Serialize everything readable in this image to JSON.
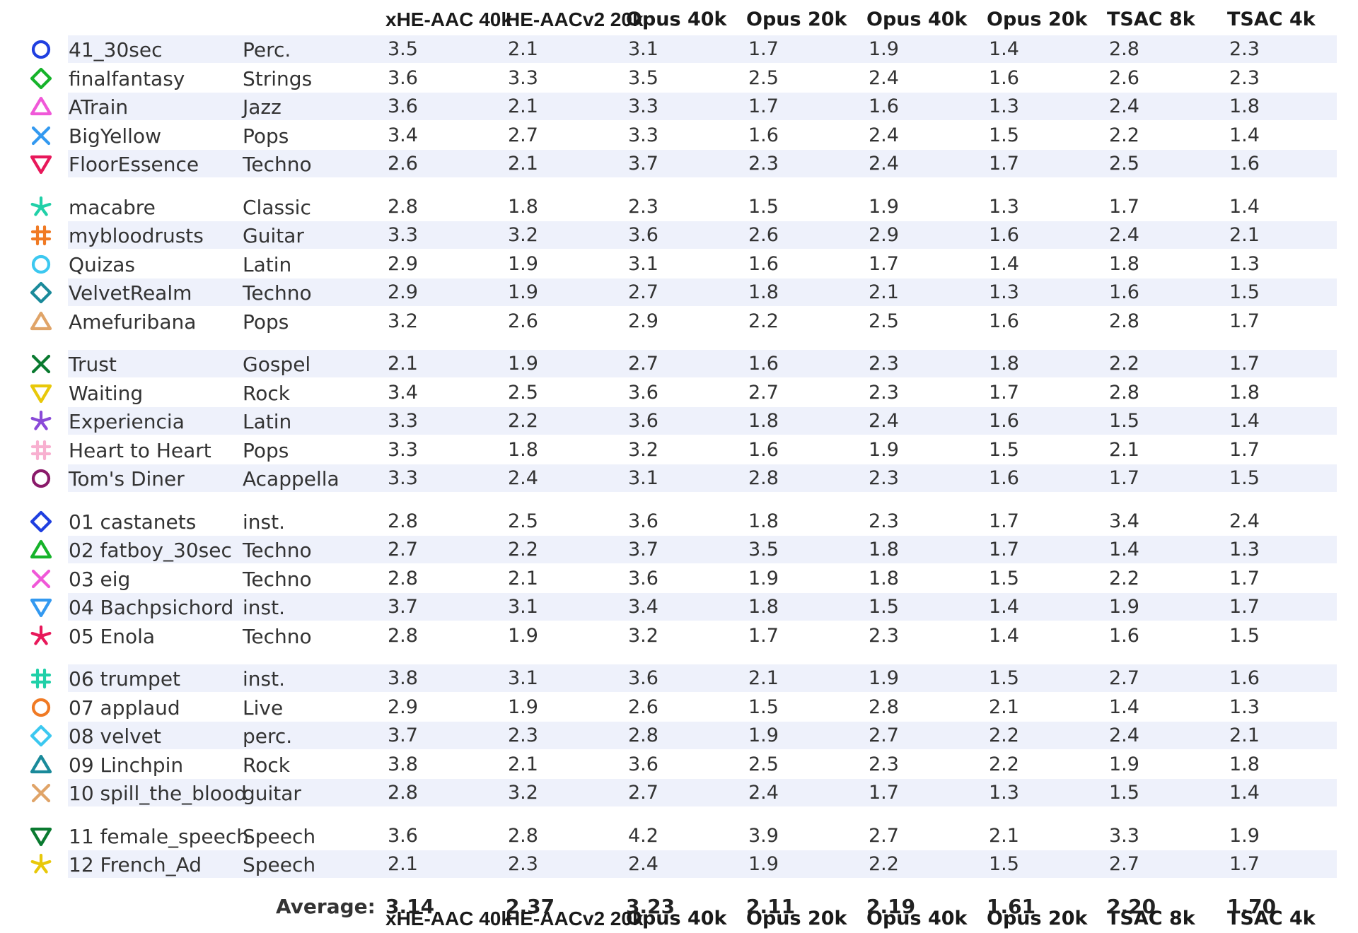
{
  "chart_data": {
    "type": "table",
    "title": "",
    "columns": [
      "xHE-AAC 40k",
      "HE-AACv2 20k",
      "Opus 40k",
      "Opus 20k",
      "Opus 40k",
      "Opus 20k",
      "TSAC 8k",
      "TSAC 4k"
    ],
    "groups": [
      [
        {
          "name": "41_30sec",
          "genre": "Perc.",
          "marker": "circle-icon",
          "color": "#1f3fe0",
          "values": [
            "3.5",
            "2.1",
            "3.1",
            "1.7",
            "1.9",
            "1.4",
            "2.8",
            "2.3"
          ]
        },
        {
          "name": "finalfantasy",
          "genre": "Strings",
          "marker": "diamond-icon",
          "color": "#16b32a",
          "values": [
            "3.6",
            "3.3",
            "3.5",
            "2.5",
            "2.4",
            "1.6",
            "2.6",
            "2.3"
          ]
        },
        {
          "name": "ATrain",
          "genre": "Jazz",
          "marker": "triangle-up-icon",
          "color": "#f058d8",
          "values": [
            "3.6",
            "2.1",
            "3.3",
            "1.7",
            "1.6",
            "1.3",
            "2.4",
            "1.8"
          ]
        },
        {
          "name": "BigYellow",
          "genre": "Pops",
          "marker": "x-icon",
          "color": "#3399f0",
          "values": [
            "3.4",
            "2.7",
            "3.3",
            "1.6",
            "2.4",
            "1.5",
            "2.2",
            "1.4"
          ]
        },
        {
          "name": "FloorEssence",
          "genre": "Techno",
          "marker": "triangle-down-icon",
          "color": "#e8185a",
          "values": [
            "2.6",
            "2.1",
            "3.7",
            "2.3",
            "2.4",
            "1.7",
            "2.5",
            "1.6"
          ]
        }
      ],
      [
        {
          "name": "macabre",
          "genre": "Classic",
          "marker": "asterisk-icon",
          "color": "#20d0a8",
          "values": [
            "2.8",
            "1.8",
            "2.3",
            "1.5",
            "1.9",
            "1.3",
            "1.7",
            "1.4"
          ]
        },
        {
          "name": "mybloodrusts",
          "genre": "Guitar",
          "marker": "hash-icon",
          "color": "#f07a24",
          "values": [
            "3.3",
            "3.2",
            "3.6",
            "2.6",
            "2.9",
            "1.6",
            "2.4",
            "2.1"
          ]
        },
        {
          "name": "Quizas",
          "genre": "Latin",
          "marker": "circle-icon",
          "color": "#3cc8f0",
          "values": [
            "2.9",
            "1.9",
            "3.1",
            "1.6",
            "1.7",
            "1.4",
            "1.8",
            "1.3"
          ]
        },
        {
          "name": "VelvetRealm",
          "genre": "Techno",
          "marker": "diamond-icon",
          "color": "#1a8a9a",
          "values": [
            "2.9",
            "1.9",
            "2.7",
            "1.8",
            "2.1",
            "1.3",
            "1.6",
            "1.5"
          ]
        },
        {
          "name": "Amefuribana",
          "genre": "Pops",
          "marker": "triangle-up-icon",
          "color": "#e0a468",
          "values": [
            "3.2",
            "2.6",
            "2.9",
            "2.2",
            "2.5",
            "1.6",
            "2.8",
            "1.7"
          ]
        }
      ],
      [
        {
          "name": "Trust",
          "genre": "Gospel",
          "marker": "x-icon",
          "color": "#0a7a30",
          "values": [
            "2.1",
            "1.9",
            "2.7",
            "1.6",
            "2.3",
            "1.8",
            "2.2",
            "1.7"
          ]
        },
        {
          "name": "Waiting",
          "genre": "Rock",
          "marker": "triangle-down-icon",
          "color": "#e8c80a",
          "values": [
            "3.4",
            "2.5",
            "3.6",
            "2.7",
            "2.3",
            "1.7",
            "2.8",
            "1.8"
          ]
        },
        {
          "name": "Experiencia",
          "genre": "Latin",
          "marker": "asterisk-icon",
          "color": "#8a4ad8",
          "values": [
            "3.3",
            "2.2",
            "3.6",
            "1.8",
            "2.4",
            "1.6",
            "1.5",
            "1.4"
          ]
        },
        {
          "name": "Heart to Heart",
          "genre": "Pops",
          "marker": "hash-icon",
          "color": "#f8b0d0",
          "values": [
            "3.3",
            "1.8",
            "3.2",
            "1.6",
            "1.9",
            "1.5",
            "2.1",
            "1.7"
          ]
        },
        {
          "name": "Tom's Diner",
          "genre": "Acappella",
          "marker": "circle-icon",
          "color": "#8a1a6a",
          "values": [
            "3.3",
            "2.4",
            "3.1",
            "2.8",
            "2.3",
            "1.6",
            "1.7",
            "1.5"
          ]
        }
      ],
      [
        {
          "name": "01 castanets",
          "genre": "inst.",
          "marker": "diamond-icon",
          "color": "#1f3fe0",
          "values": [
            "2.8",
            "2.5",
            "3.6",
            "1.8",
            "2.3",
            "1.7",
            "3.4",
            "2.4"
          ]
        },
        {
          "name": "02 fatboy_30sec",
          "genre": "Techno",
          "marker": "triangle-up-icon",
          "color": "#16b32a",
          "values": [
            "2.7",
            "2.2",
            "3.7",
            "3.5",
            "1.8",
            "1.7",
            "1.4",
            "1.3"
          ]
        },
        {
          "name": "03 eig",
          "genre": "Techno",
          "marker": "x-icon",
          "color": "#f058d8",
          "values": [
            "2.8",
            "2.1",
            "3.6",
            "1.9",
            "1.8",
            "1.5",
            "2.2",
            "1.7"
          ]
        },
        {
          "name": "04 Bachpsichord",
          "genre": "inst.",
          "marker": "triangle-down-icon",
          "color": "#3399f0",
          "values": [
            "3.7",
            "3.1",
            "3.4",
            "1.8",
            "1.5",
            "1.4",
            "1.9",
            "1.7"
          ]
        },
        {
          "name": "05 Enola",
          "genre": "Techno",
          "marker": "asterisk-icon",
          "color": "#e8185a",
          "values": [
            "2.8",
            "1.9",
            "3.2",
            "1.7",
            "2.3",
            "1.4",
            "1.6",
            "1.5"
          ]
        }
      ],
      [
        {
          "name": "06 trumpet",
          "genre": "inst.",
          "marker": "hash-icon",
          "color": "#20d0a8",
          "values": [
            "3.8",
            "3.1",
            "3.6",
            "2.1",
            "1.9",
            "1.5",
            "2.7",
            "1.6"
          ]
        },
        {
          "name": "07 applaud",
          "genre": "Live",
          "marker": "circle-icon",
          "color": "#f07a24",
          "values": [
            "2.9",
            "1.9",
            "2.6",
            "1.5",
            "2.8",
            "2.1",
            "1.4",
            "1.3"
          ]
        },
        {
          "name": "08 velvet",
          "genre": "perc.",
          "marker": "diamond-icon",
          "color": "#3cc8f0",
          "values": [
            "3.7",
            "2.3",
            "2.8",
            "1.9",
            "2.7",
            "2.2",
            "2.4",
            "2.1"
          ]
        },
        {
          "name": "09 Linchpin",
          "genre": "Rock",
          "marker": "triangle-up-icon",
          "color": "#1a8a9a",
          "values": [
            "3.8",
            "2.1",
            "3.6",
            "2.5",
            "2.3",
            "2.2",
            "1.9",
            "1.8"
          ]
        },
        {
          "name": "10 spill_the_blood",
          "genre": "guitar",
          "marker": "x-icon",
          "color": "#e0a468",
          "values": [
            "2.8",
            "3.2",
            "2.7",
            "2.4",
            "1.7",
            "1.3",
            "1.5",
            "1.4"
          ]
        }
      ],
      [
        {
          "name": "11 female_speech",
          "genre": "Speech",
          "marker": "triangle-down-icon",
          "color": "#0a7a30",
          "values": [
            "3.6",
            "2.8",
            "4.2",
            "3.9",
            "2.7",
            "2.1",
            "3.3",
            "1.9"
          ]
        },
        {
          "name": "12 French_Ad",
          "genre": "Speech",
          "marker": "asterisk-icon",
          "color": "#e8c80a",
          "values": [
            "2.1",
            "2.3",
            "2.4",
            "1.9",
            "2.2",
            "1.5",
            "2.7",
            "1.7"
          ]
        }
      ]
    ],
    "average_label": "Average:",
    "averages": [
      "3.14",
      "2.37",
      "3.23",
      "2.11",
      "2.19",
      "1.61",
      "2.20",
      "1.70"
    ]
  }
}
